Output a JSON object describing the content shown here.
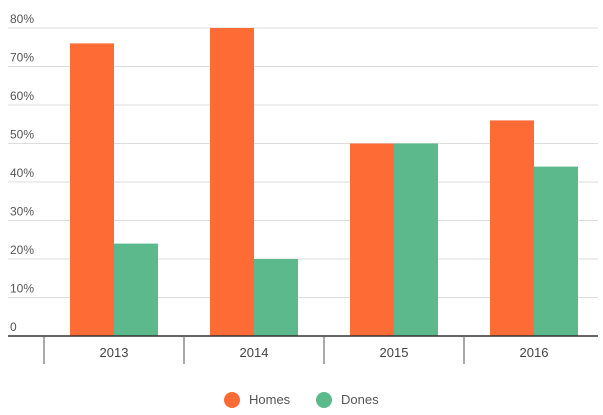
{
  "chart_data": {
    "type": "bar",
    "categories": [
      "2013",
      "2014",
      "2015",
      "2016"
    ],
    "series": [
      {
        "name": "Homes",
        "values": [
          76,
          80,
          50,
          56
        ],
        "color": "#ff6b35"
      },
      {
        "name": "Dones",
        "values": [
          24,
          20,
          50,
          44
        ],
        "color": "#5cb98c"
      }
    ],
    "yticks": [
      "0",
      "10%",
      "20%",
      "30%",
      "40%",
      "50%",
      "60%",
      "70%",
      "80%"
    ],
    "ylim": [
      0,
      80
    ],
    "grid": true,
    "legend_position": "bottom-center",
    "title": "",
    "xlabel": "",
    "ylabel": ""
  }
}
